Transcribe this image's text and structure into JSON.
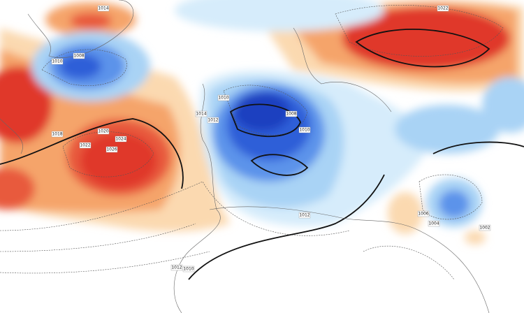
{
  "map": {
    "isobar_labels": [
      "1014",
      "1010",
      "1008",
      "1022",
      "1010",
      "1014",
      "1012",
      "1008",
      "1010",
      "1018",
      "1020",
      "1024",
      "1022",
      "1026",
      "1012",
      "1006",
      "1004",
      "1002",
      "1012",
      "1010"
    ]
  }
}
